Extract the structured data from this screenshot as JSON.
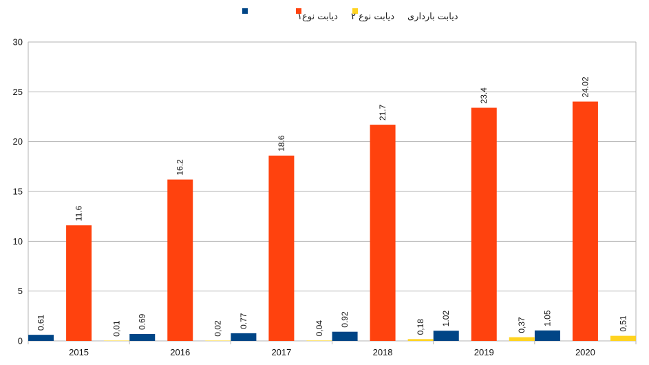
{
  "chart_data": {
    "type": "bar",
    "categories": [
      "2015",
      "2016",
      "2017",
      "2018",
      "2019",
      "2020"
    ],
    "series": [
      {
        "name": "دیابت نوع۱",
        "color": "#004586",
        "values": [
          0.61,
          0.69,
          0.77,
          0.92,
          1.02,
          1.05
        ],
        "labels": [
          "0.61",
          "0.69",
          "0.77",
          "0.92",
          "1.02",
          "1.05"
        ]
      },
      {
        "name": "دیابت نوع ۲",
        "color": "#ff420e",
        "values": [
          11.6,
          16.2,
          18.6,
          21.7,
          23.4,
          24.02
        ],
        "labels": [
          "11.6",
          "16.2",
          "18.6",
          "21.7",
          "23.4",
          "24.02"
        ]
      },
      {
        "name": "دیابت بارداری",
        "color": "#ffd320",
        "values": [
          0.01,
          0.02,
          0.04,
          0.18,
          0.37,
          0.51
        ],
        "labels": [
          "0,01",
          "0,02",
          "0,04",
          "0,18",
          "0,37",
          "0,51"
        ]
      }
    ],
    "legend_order": [
      2,
      1,
      0
    ],
    "ylim": [
      0,
      30
    ],
    "yticks": [
      0,
      5,
      10,
      15,
      20,
      25,
      30
    ],
    "grid": true,
    "legend_position": "top-center",
    "title": "",
    "xlabel": "",
    "ylabel": ""
  }
}
